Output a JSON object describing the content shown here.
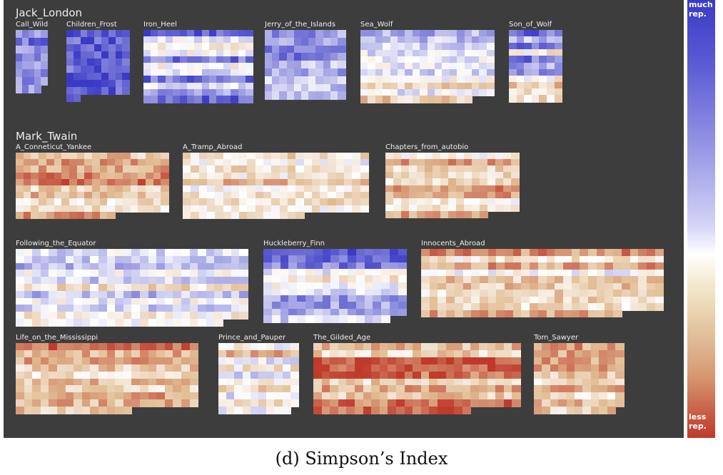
{
  "chart_data": {
    "type": "heatmap",
    "caption": "(d)  Simpson’s Index",
    "legend": {
      "top_label": "much\nrep.",
      "bottom_label": "less\nrep."
    },
    "colors": {
      "much": "#3a3ac6",
      "mid": "#ffffff",
      "less": "#bf3a2c",
      "background": "#3d3d3d"
    },
    "groups": [
      {
        "author": "Jack_London",
        "books": [
          {
            "title": "Call_Wild",
            "seed": 3,
            "rows": 8,
            "cols": 5,
            "missing": 1,
            "tendency": 0.55,
            "stripe": 0.2
          },
          {
            "title": "Children_Frost",
            "seed": 7,
            "rows": 10,
            "cols": 9,
            "missing": 7,
            "tendency": 0.85,
            "stripe": 0.1
          },
          {
            "title": "Iron_Heel",
            "seed": 11,
            "rows": 11,
            "cols": 15,
            "missing": 0,
            "tendency": 0.35,
            "stripe": 0.6
          },
          {
            "title": "Jerry_of_the_Islands",
            "seed": 19,
            "rows": 9,
            "cols": 11,
            "missing": 0,
            "tendency": 0.45,
            "stripe": 0.3
          },
          {
            "title": "Sea_Wolf",
            "seed": 23,
            "rows": 11,
            "cols": 18,
            "missing": 3,
            "tendency": 0.05,
            "stripe": 0.4
          },
          {
            "title": "Son_of_Wolf",
            "seed": 29,
            "rows": 11,
            "cols": 7,
            "missing": 0,
            "tendency": 0.2,
            "stripe": 0.6
          }
        ]
      },
      {
        "author": "Mark_Twain",
        "books": [
          {
            "title": "A_Conneticut_Yankee",
            "seed": 31,
            "rows": 10,
            "cols": 20,
            "missing": 7,
            "tendency": -0.45,
            "stripe": 0.3
          },
          {
            "title": "A_Tramp_Abroad",
            "seed": 37,
            "rows": 10,
            "cols": 23,
            "missing": 8,
            "tendency": -0.35,
            "stripe": 0.35
          },
          {
            "title": "Chapters_from_autobio",
            "seed": 41,
            "rows": 10,
            "cols": 17,
            "missing": 4,
            "tendency": -0.35,
            "stripe": 0.3
          },
          {
            "title": "Following_the_Equator",
            "seed": 43,
            "rows": 11,
            "cols": 28,
            "missing": 3,
            "tendency": 0.05,
            "stripe": 0.35
          },
          {
            "title": "Huckleberry_Finn",
            "seed": 47,
            "rows": 11,
            "cols": 17,
            "missing": 2,
            "tendency": 0.3,
            "stripe": 0.5
          },
          {
            "title": "Innocents_Abroad",
            "seed": 53,
            "rows": 10,
            "cols": 29,
            "missing": 5,
            "tendency": -0.3,
            "stripe": 0.35
          },
          {
            "title": "Life_on_the_Mississippi",
            "seed": 59,
            "rows": 10,
            "cols": 22,
            "missing": 8,
            "tendency": -0.45,
            "stripe": 0.35
          },
          {
            "title": "Prince_and_Pauper",
            "seed": 61,
            "rows": 10,
            "cols": 10,
            "missing": 1,
            "tendency": -0.2,
            "stripe": 0.4
          },
          {
            "title": "The_Gilded_Age",
            "seed": 67,
            "rows": 10,
            "cols": 25,
            "missing": 6,
            "tendency": -0.6,
            "stripe": 0.45
          },
          {
            "title": "Tom_Sawyer",
            "seed": 71,
            "rows": 10,
            "cols": 11,
            "missing": 1,
            "tendency": -0.4,
            "stripe": 0.2
          }
        ]
      }
    ]
  }
}
